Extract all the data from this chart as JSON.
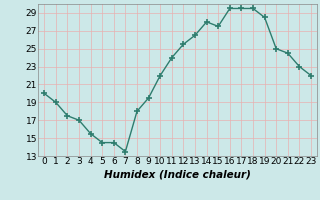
{
  "x": [
    0,
    1,
    2,
    3,
    4,
    5,
    6,
    7,
    8,
    9,
    10,
    11,
    12,
    13,
    14,
    15,
    16,
    17,
    18,
    19,
    20,
    21,
    22,
    23
  ],
  "y": [
    20,
    19,
    17.5,
    17,
    15.5,
    14.5,
    14.5,
    13.5,
    18,
    19.5,
    22,
    24,
    25.5,
    26.5,
    28,
    27.5,
    29.5,
    29.5,
    29.5,
    28.5,
    25,
    24.5,
    23,
    22
  ],
  "line_color": "#2e7d6e",
  "marker": "+",
  "marker_size": 4,
  "marker_lw": 1.2,
  "line_width": 1.0,
  "bg_color": "#cce8e8",
  "grid_color": "#e8b0b0",
  "xlabel": "Humidex (Indice chaleur)",
  "xlabel_style": "italic",
  "xlabel_weight": "bold",
  "ylim": [
    13,
    30
  ],
  "xlim": [
    -0.5,
    23.5
  ],
  "yticks": [
    13,
    15,
    17,
    19,
    21,
    23,
    25,
    27,
    29
  ],
  "xticks": [
    0,
    1,
    2,
    3,
    4,
    5,
    6,
    7,
    8,
    9,
    10,
    11,
    12,
    13,
    14,
    15,
    16,
    17,
    18,
    19,
    20,
    21,
    22,
    23
  ],
  "tick_fontsize": 6.5,
  "xlabel_fontsize": 7.5
}
